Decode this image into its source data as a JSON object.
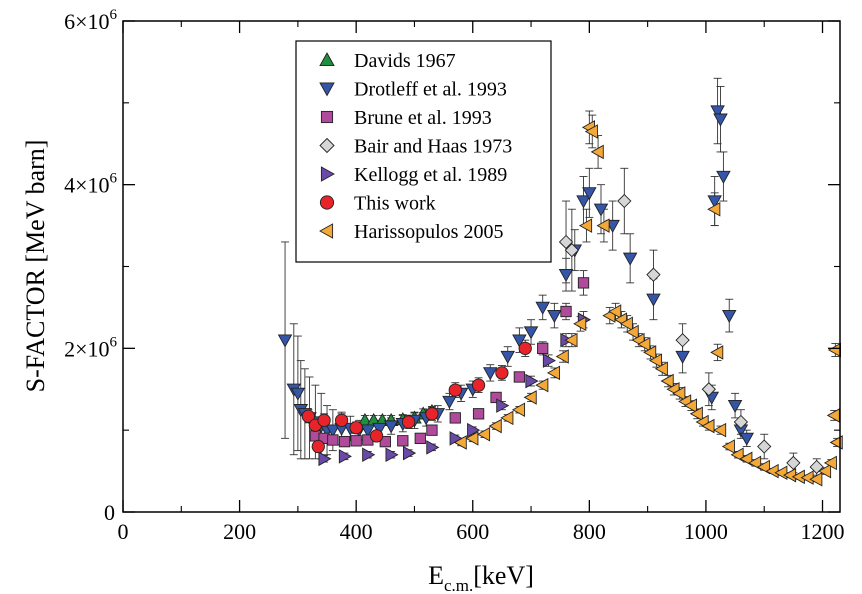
{
  "chart_data": {
    "type": "scatter",
    "xlabel": "E",
    "xlabel_sub": "c.m.",
    "xlabel_unit": "[keV]",
    "ylabel": "S-FACTOR [MeV barn]",
    "xlim": [
      0,
      1230
    ],
    "ylim": [
      0,
      6000000
    ],
    "x_ticks": [
      0,
      200,
      400,
      600,
      800,
      1000,
      1200
    ],
    "x_tick_labels": [
      "0",
      "200",
      "400",
      "600",
      "800",
      "1000",
      "1200"
    ],
    "y_ticks": [
      0,
      2000000,
      4000000,
      6000000
    ],
    "y_tick_labels": [
      {
        "base": "0",
        "exp": ""
      },
      {
        "base": "2×10",
        "exp": "6"
      },
      {
        "base": "4×10",
        "exp": "6"
      },
      {
        "base": "6×10",
        "exp": "6"
      }
    ],
    "grid": false,
    "legend_position": "top-left-center",
    "series": [
      {
        "name": "Davids 1967",
        "marker": "triangle-up",
        "color": "#1f8f3f",
        "points": [
          [
            415,
            1120000,
            60000
          ],
          [
            430,
            1120000,
            60000
          ],
          [
            445,
            1120000,
            60000
          ],
          [
            460,
            1120000,
            60000
          ],
          [
            480,
            1130000,
            60000
          ],
          [
            500,
            1150000,
            60000
          ],
          [
            515,
            1200000,
            60000
          ],
          [
            530,
            1230000,
            60000
          ]
        ]
      },
      {
        "name": "Drotleff et al. 1993",
        "marker": "triangle-down",
        "color": "#3556a8",
        "points": [
          [
            278,
            2100000,
            1200000
          ],
          [
            293,
            1500000,
            800000
          ],
          [
            300,
            1450000,
            700000
          ],
          [
            305,
            1250000,
            600000
          ],
          [
            312,
            1200000,
            550000
          ],
          [
            320,
            1150000,
            500000
          ],
          [
            330,
            1100000,
            450000
          ],
          [
            340,
            1050000,
            400000
          ],
          [
            350,
            1000000,
            300000
          ],
          [
            360,
            1000000,
            250000
          ],
          [
            375,
            1020000,
            200000
          ],
          [
            390,
            1020000,
            150000
          ],
          [
            405,
            1000000,
            120000
          ],
          [
            420,
            1000000,
            100000
          ],
          [
            440,
            1020000,
            100000
          ],
          [
            460,
            1050000,
            100000
          ],
          [
            480,
            1080000,
            100000
          ],
          [
            500,
            1120000,
            100000
          ],
          [
            520,
            1150000,
            100000
          ],
          [
            540,
            1200000,
            100000
          ],
          [
            560,
            1350000,
            100000
          ],
          [
            580,
            1450000,
            100000
          ],
          [
            600,
            1500000,
            100000
          ],
          [
            630,
            1700000,
            100000
          ],
          [
            660,
            1900000,
            120000
          ],
          [
            680,
            2100000,
            150000
          ],
          [
            700,
            2200000,
            150000
          ],
          [
            720,
            2500000,
            150000
          ],
          [
            740,
            2400000,
            150000
          ],
          [
            760,
            2900000,
            200000
          ],
          [
            775,
            3200000,
            250000
          ],
          [
            790,
            3800000,
            300000
          ],
          [
            800,
            3900000,
            300000
          ],
          [
            820,
            3700000,
            300000
          ],
          [
            840,
            3500000,
            300000
          ],
          [
            870,
            3100000,
            300000
          ],
          [
            910,
            2600000,
            250000
          ],
          [
            960,
            1900000,
            200000
          ],
          [
            1010,
            1400000,
            150000
          ],
          [
            1015,
            3800000,
            300000
          ],
          [
            1020,
            4900000,
            400000
          ],
          [
            1025,
            4800000,
            400000
          ],
          [
            1030,
            4100000,
            300000
          ],
          [
            1040,
            2400000,
            200000
          ],
          [
            1050,
            1300000,
            150000
          ],
          [
            1060,
            1000000,
            100000
          ],
          [
            1070,
            900000,
            100000
          ]
        ]
      },
      {
        "name": "Brune et al. 1993",
        "marker": "square",
        "color": "#b04a9a",
        "points": [
          [
            330,
            930000,
            60000
          ],
          [
            345,
            900000,
            60000
          ],
          [
            360,
            880000,
            60000
          ],
          [
            380,
            860000,
            60000
          ],
          [
            400,
            870000,
            60000
          ],
          [
            420,
            880000,
            60000
          ],
          [
            450,
            860000,
            60000
          ],
          [
            480,
            870000,
            60000
          ],
          [
            510,
            900000,
            60000
          ],
          [
            530,
            1000000,
            60000
          ],
          [
            570,
            1150000,
            60000
          ],
          [
            610,
            1200000,
            60000
          ],
          [
            640,
            1400000,
            60000
          ],
          [
            680,
            1650000,
            60000
          ],
          [
            720,
            2000000,
            80000
          ],
          [
            760,
            2450000,
            100000
          ],
          [
            790,
            2800000,
            150000
          ]
        ]
      },
      {
        "name": "Bair and Haas 1973",
        "marker": "diamond",
        "color": "#d6d6d6",
        "points": [
          [
            760,
            3300000,
            500000
          ],
          [
            770,
            3200000,
            500000
          ],
          [
            860,
            3800000,
            400000
          ],
          [
            910,
            2900000,
            300000
          ],
          [
            960,
            2100000,
            200000
          ],
          [
            1005,
            1500000,
            200000
          ],
          [
            1060,
            1100000,
            150000
          ],
          [
            1100,
            800000,
            150000
          ],
          [
            1150,
            600000,
            120000
          ],
          [
            1190,
            550000,
            100000
          ]
        ]
      },
      {
        "name": "Kellogg et al. 1989",
        "marker": "triangle-right",
        "color": "#6a4aa8",
        "points": [
          [
            345,
            650000,
            40000
          ],
          [
            380,
            680000,
            40000
          ],
          [
            420,
            700000,
            40000
          ],
          [
            460,
            700000,
            40000
          ],
          [
            490,
            720000,
            40000
          ],
          [
            530,
            790000,
            40000
          ],
          [
            570,
            900000,
            40000
          ],
          [
            600,
            1000000,
            40000
          ],
          [
            650,
            1300000,
            50000
          ],
          [
            700,
            1600000,
            60000
          ],
          [
            730,
            1850000,
            70000
          ],
          [
            760,
            2100000,
            80000
          ],
          [
            790,
            2350000,
            100000
          ]
        ]
      },
      {
        "name": "This work",
        "marker": "circle",
        "color": "#e8242a",
        "points": [
          [
            318,
            1170000,
            80000
          ],
          [
            330,
            1060000,
            70000
          ],
          [
            335,
            800000,
            60000
          ],
          [
            345,
            1120000,
            80000
          ],
          [
            375,
            1120000,
            80000
          ],
          [
            400,
            1030000,
            70000
          ],
          [
            435,
            930000,
            60000
          ],
          [
            490,
            1100000,
            80000
          ],
          [
            530,
            1200000,
            80000
          ],
          [
            570,
            1490000,
            90000
          ],
          [
            610,
            1550000,
            90000
          ],
          [
            650,
            1700000,
            90000
          ],
          [
            690,
            2000000,
            100000
          ]
        ]
      },
      {
        "name": "Harissopulos 2005",
        "marker": "triangle-left",
        "color": "#f4a838",
        "points": [
          [
            580,
            850000,
            40000
          ],
          [
            600,
            900000,
            40000
          ],
          [
            620,
            950000,
            40000
          ],
          [
            640,
            1050000,
            40000
          ],
          [
            660,
            1150000,
            40000
          ],
          [
            680,
            1250000,
            40000
          ],
          [
            700,
            1400000,
            50000
          ],
          [
            720,
            1550000,
            50000
          ],
          [
            740,
            1700000,
            60000
          ],
          [
            755,
            1900000,
            70000
          ],
          [
            770,
            2100000,
            80000
          ],
          [
            785,
            2300000,
            90000
          ],
          [
            795,
            3500000,
            200000
          ],
          [
            800,
            4700000,
            200000
          ],
          [
            805,
            4650000,
            200000
          ],
          [
            815,
            4400000,
            200000
          ],
          [
            825,
            3500000,
            200000
          ],
          [
            835,
            2400000,
            100000
          ],
          [
            845,
            2450000,
            100000
          ],
          [
            855,
            2350000,
            100000
          ],
          [
            865,
            2300000,
            100000
          ],
          [
            875,
            2200000,
            100000
          ],
          [
            885,
            2100000,
            80000
          ],
          [
            895,
            2050000,
            80000
          ],
          [
            905,
            1950000,
            80000
          ],
          [
            915,
            1850000,
            80000
          ],
          [
            925,
            1750000,
            80000
          ],
          [
            935,
            1600000,
            70000
          ],
          [
            945,
            1500000,
            70000
          ],
          [
            955,
            1450000,
            70000
          ],
          [
            965,
            1350000,
            60000
          ],
          [
            975,
            1300000,
            60000
          ],
          [
            985,
            1200000,
            60000
          ],
          [
            995,
            1100000,
            50000
          ],
          [
            1005,
            1050000,
            50000
          ],
          [
            1015,
            3700000,
            200000
          ],
          [
            1020,
            1950000,
            100000
          ],
          [
            1025,
            1000000,
            50000
          ],
          [
            1040,
            800000,
            40000
          ],
          [
            1055,
            700000,
            40000
          ],
          [
            1070,
            650000,
            40000
          ],
          [
            1085,
            600000,
            40000
          ],
          [
            1100,
            550000,
            40000
          ],
          [
            1115,
            500000,
            30000
          ],
          [
            1130,
            480000,
            30000
          ],
          [
            1145,
            450000,
            30000
          ],
          [
            1160,
            430000,
            30000
          ],
          [
            1175,
            420000,
            30000
          ],
          [
            1190,
            400000,
            30000
          ],
          [
            1205,
            500000,
            40000
          ],
          [
            1215,
            600000,
            40000
          ],
          [
            1220,
            1180000,
            60000
          ],
          [
            1222,
            1980000,
            80000
          ],
          [
            1225,
            850000,
            50000
          ]
        ]
      }
    ]
  }
}
